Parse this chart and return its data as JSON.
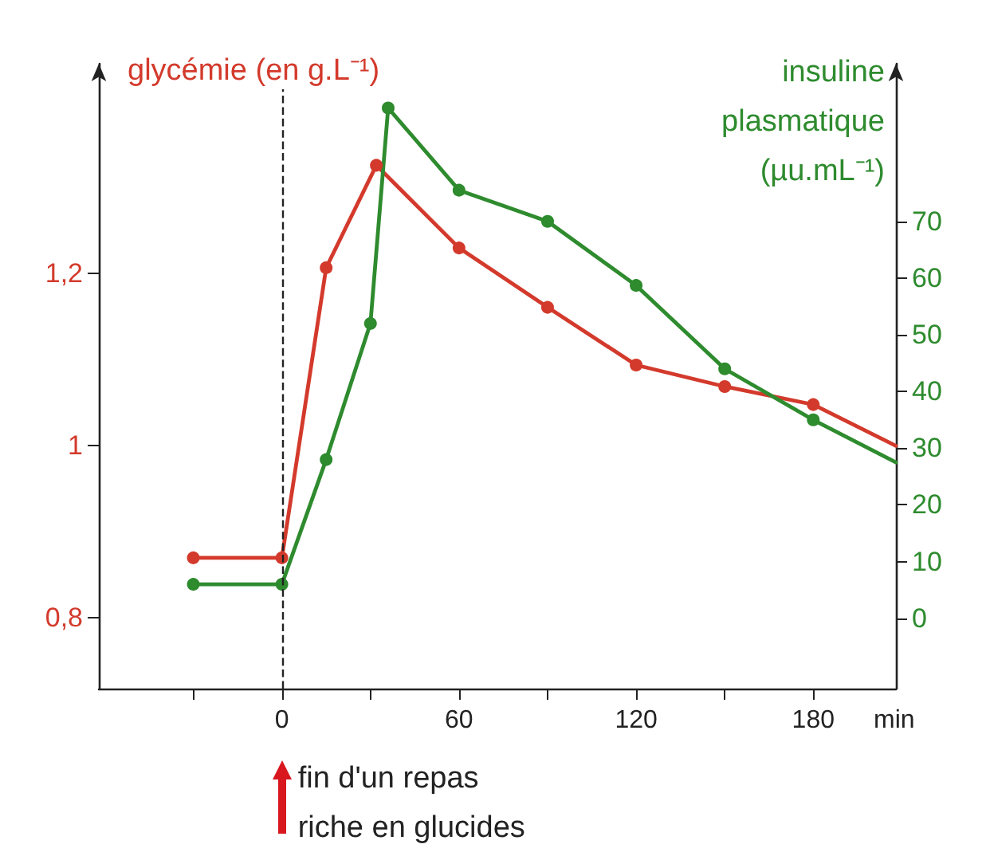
{
  "chart_data": {
    "type": "line",
    "ylabel": "glycémie (en g.L⁻¹)",
    "y2label": "insuline plasmatique (µu.mL⁻¹)",
    "xlabel": "min",
    "x": [
      -30,
      0,
      15,
      32,
      60,
      90,
      120,
      150,
      180,
      208
    ],
    "series": [
      {
        "color": "#d33a2c",
        "values": [
          0.87,
          0.87,
          1.207,
          1.326,
          1.23,
          1.161,
          1.094,
          1.069,
          1.048,
          1.0
        ]
      },
      {
        "color": "#2e8b2e",
        "axis": "y2",
        "x": [
          -30,
          0,
          15,
          30,
          36,
          60,
          90,
          120,
          150,
          180,
          208
        ],
        "values": [
          6,
          6,
          28,
          52,
          90,
          75.5,
          70,
          58.7,
          44,
          35,
          27.5
        ]
      }
    ],
    "xlim": [
      -62,
      208
    ],
    "xticks": [
      {
        "value": -30,
        "label": null
      },
      0,
      {
        "value": 30,
        "label": null
      },
      60,
      {
        "value": 90,
        "label": null
      },
      120,
      {
        "value": 150,
        "label": null
      },
      180
    ],
    "ylim": [
      0.718,
      1.444
    ],
    "yticks": [
      {
        "value": 0.8,
        "label": "0,8"
      },
      1,
      {
        "value": 1.2,
        "label": "1,2"
      }
    ],
    "y2lim": [
      -12.4,
      97.8
    ],
    "y2ticks": [
      0,
      10,
      20,
      30,
      40,
      50,
      60,
      70
    ],
    "ref_lines": [
      {
        "axis": "x",
        "value": 0,
        "label": "fin d'un repas riche en glucides",
        "color": "#222222",
        "line_style": "dashed"
      }
    ],
    "marker": "circle",
    "line_style": "solid",
    "grid": false
  }
}
